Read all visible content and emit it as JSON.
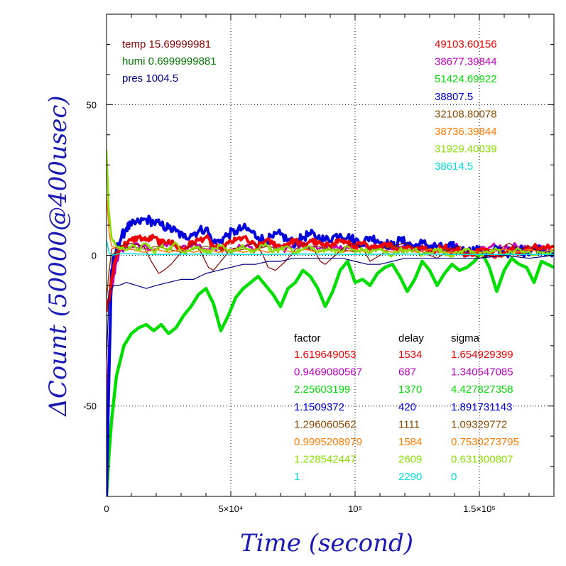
{
  "chart_data": {
    "type": "line",
    "xlabel": "Time (second)",
    "ylabel": "ΔCount (50000@400usec)",
    "xlim": [
      0,
      180000
    ],
    "ylim": [
      -80,
      80
    ],
    "x_ticks": [
      {
        "value": 0,
        "label": "0"
      },
      {
        "value": 50000,
        "label": "5×10⁴"
      },
      {
        "value": 100000,
        "label": "10⁵"
      },
      {
        "value": 150000,
        "label": "1.5×10⁵"
      }
    ],
    "y_ticks": [
      {
        "value": -50,
        "label": "-50"
      },
      {
        "value": 0,
        "label": "0"
      },
      {
        "value": 50,
        "label": "50"
      }
    ],
    "grid": true,
    "env": [
      {
        "text": "temp 15.69999981",
        "color": "#8b0000"
      },
      {
        "text": "humi 0.6999999881",
        "color": "#007a00"
      },
      {
        "text": "pres 1004.5",
        "color": "#00008b"
      }
    ],
    "baselines": [
      "49103.60156",
      "38677.39844",
      "51424.69922",
      "38807.5",
      "32108.80078",
      "38736.39844",
      "31929.40039",
      "38614.5"
    ],
    "table_headers": {
      "factor": "factor",
      "delay": "delay",
      "sigma": "sigma"
    },
    "table": [
      {
        "factor": "1.619649053",
        "delay": "1534",
        "sigma": "1.654929399"
      },
      {
        "factor": "0.9469080567",
        "delay": "687",
        "sigma": "1.340547085"
      },
      {
        "factor": "2.25603199",
        "delay": "1370",
        "sigma": "4.427827358"
      },
      {
        "factor": "1.1509372",
        "delay": "420",
        "sigma": "1.891731143"
      },
      {
        "factor": "1.296060562",
        "delay": "1111",
        "sigma": "1.09329772"
      },
      {
        "factor": "0.9995208979",
        "delay": "1584",
        "sigma": "0.7530273795"
      },
      {
        "factor": "1.228542447",
        "delay": "2609",
        "sigma": "0.631300807"
      },
      {
        "factor": "1",
        "delay": "2290",
        "sigma": "0"
      }
    ],
    "series": [
      {
        "color": "#00dd00",
        "width": 4.5,
        "x": [
          0,
          1000,
          2000,
          4000,
          7000,
          10000,
          13000,
          16000,
          19000,
          22000,
          25000,
          28000,
          31000,
          34000,
          37000,
          40000,
          43000,
          46000,
          49000,
          52000,
          55000,
          58000,
          61000,
          64000,
          67000,
          70000,
          73000,
          76000,
          79000,
          82000,
          85000,
          88000,
          91000,
          94000,
          97000,
          100000,
          103000,
          106000,
          109000,
          112000,
          115000,
          118000,
          121000,
          124000,
          127000,
          130000,
          133000,
          136000,
          139000,
          142000,
          145000,
          148000,
          151000,
          154000,
          157000,
          160000,
          163000,
          166000,
          169000,
          172000,
          175000,
          180000
        ],
        "y": [
          -80,
          -66,
          -55,
          -40,
          -30,
          -26,
          -24,
          -23,
          -25,
          -23,
          -26,
          -24,
          -20,
          -17,
          -13,
          -11,
          -16,
          -25,
          -20,
          -14,
          -11,
          -9,
          -7,
          -10,
          -13,
          -17,
          -11,
          -9,
          -5,
          -7,
          -11,
          -17,
          -12,
          -5,
          -2,
          -9,
          -8,
          -10,
          -6,
          -4,
          -3,
          -7,
          -12,
          -8,
          -2,
          -5,
          -10,
          -6,
          -3,
          -5,
          -4,
          -2,
          1,
          -4,
          -12,
          -5,
          -1,
          -3,
          -4,
          -9,
          -2,
          -4
        ]
      },
      {
        "color": "#c000c0",
        "width": 3,
        "x": [
          0,
          1000,
          2000,
          4000,
          6000,
          10000,
          15000,
          20000,
          25000,
          30000,
          35000,
          40000,
          45000,
          50000,
          55000,
          60000,
          65000,
          70000,
          75000,
          80000,
          85000,
          90000,
          95000,
          100000,
          105000,
          110000,
          115000,
          120000,
          125000,
          130000,
          135000,
          140000,
          145000,
          150000,
          155000,
          160000,
          165000,
          170000,
          175000,
          180000
        ],
        "y": [
          -60,
          -30,
          -12,
          -2,
          2,
          3,
          3,
          2,
          4,
          2,
          4,
          2,
          3,
          2,
          3,
          2,
          4,
          2,
          3,
          3,
          2,
          3,
          2,
          3,
          2,
          3,
          2,
          3,
          2,
          3,
          2,
          3,
          2,
          2,
          3,
          2,
          3,
          2,
          3,
          2
        ],
        "jitter": 1.2
      },
      {
        "color": "#0000dd",
        "width": 4,
        "x": [
          0,
          1000,
          2000,
          4000,
          6000,
          8000,
          10000,
          13000,
          16000,
          19000,
          22000,
          25000,
          28000,
          31000,
          34000,
          37000,
          40000,
          43000,
          46000,
          49000,
          52000,
          55000,
          58000,
          61000,
          64000,
          67000,
          70000,
          73000,
          76000,
          79000,
          82000,
          85000,
          88000,
          91000,
          94000,
          97000,
          100000,
          103000,
          106000,
          109000,
          112000,
          115000,
          118000,
          121000,
          124000,
          127000,
          130000,
          133000,
          136000,
          139000,
          142000,
          145000,
          148000,
          151000,
          154000,
          157000,
          160000,
          163000,
          166000,
          169000,
          172000,
          175000,
          180000
        ],
        "y": [
          -80,
          -40,
          -5,
          2,
          6,
          9,
          10,
          11,
          12,
          11,
          10,
          9,
          8,
          6,
          7,
          8,
          9,
          4,
          5,
          7,
          8,
          9,
          8,
          6,
          5,
          6,
          7,
          5,
          4,
          6,
          7,
          6,
          5,
          6,
          7,
          6,
          5,
          4,
          6,
          5,
          4,
          3,
          5,
          4,
          3,
          4,
          3,
          3,
          2,
          3,
          2,
          1,
          2,
          1,
          0,
          2,
          1,
          1,
          2,
          1,
          2,
          2,
          1
        ],
        "jitter": 1.6
      },
      {
        "color": "#ee0000",
        "width": 4,
        "x": [
          0,
          1000,
          2000,
          4000,
          6000,
          8000,
          10000,
          13000,
          16000,
          19000,
          22000,
          25000,
          28000,
          31000,
          34000,
          37000,
          40000,
          43000,
          46000,
          49000,
          52000,
          55000,
          58000,
          61000,
          64000,
          67000,
          70000,
          73000,
          76000,
          79000,
          82000,
          85000,
          88000,
          91000,
          94000,
          97000,
          100000,
          103000,
          106000,
          109000,
          112000,
          115000,
          118000,
          121000,
          124000,
          127000,
          130000,
          133000,
          136000,
          139000,
          142000,
          145000,
          148000,
          151000,
          154000,
          157000,
          160000,
          163000,
          166000,
          169000,
          172000,
          175000,
          180000
        ],
        "y": [
          -18,
          -15,
          -8,
          0,
          3,
          4,
          5,
          6,
          5,
          6,
          4,
          5,
          3,
          2,
          4,
          5,
          6,
          3,
          2,
          4,
          5,
          6,
          4,
          3,
          5,
          4,
          3,
          4,
          5,
          3,
          5,
          4,
          3,
          4,
          5,
          4,
          3,
          4,
          2,
          3,
          4,
          3,
          2,
          3,
          2,
          3,
          1,
          2,
          3,
          1,
          2,
          0,
          1,
          2,
          1,
          0,
          1,
          2,
          1,
          2,
          3,
          2,
          3
        ],
        "jitter": 1.0
      },
      {
        "color": "#8b0000",
        "width": 1.2,
        "x": [
          0,
          1000,
          2000,
          5000,
          10000,
          15000,
          18000,
          21000,
          23000,
          26000,
          30000,
          35000,
          38000,
          41000,
          43000,
          46000,
          50000,
          55000,
          60000,
          63000,
          65000,
          68000,
          72000,
          76000,
          80000,
          84000,
          86000,
          88000,
          92000,
          96000,
          100000,
          104000,
          106000,
          110000,
          115000,
          120000,
          125000,
          130000,
          133000,
          138000,
          142000,
          146000,
          150000,
          154000,
          158000,
          162000,
          166000,
          170000,
          175000,
          180000
        ],
        "y": [
          -14,
          -6,
          2,
          3,
          4,
          3,
          -2,
          -6,
          -5,
          -3,
          1,
          4,
          1,
          -4,
          -5,
          -2,
          2,
          3,
          4,
          0,
          -4,
          -5,
          -2,
          2,
          4,
          1,
          -2,
          -3,
          0,
          3,
          4,
          1,
          -2,
          0,
          3,
          4,
          2,
          0,
          -1,
          2,
          3,
          1,
          -1,
          0,
          2,
          4,
          2,
          3,
          1,
          2
        ]
      },
      {
        "color": "#8a4a00",
        "width": 1.2,
        "x": [
          0,
          1000,
          2000,
          5000,
          10000,
          15000,
          20000,
          25000,
          30000,
          35000,
          40000,
          45000,
          50000,
          55000,
          60000,
          65000,
          70000,
          75000,
          80000,
          85000,
          90000,
          95000,
          100000,
          105000,
          110000,
          115000,
          120000,
          125000,
          130000,
          135000,
          140000,
          145000,
          150000,
          155000,
          160000,
          165000,
          170000,
          175000,
          180000
        ],
        "y": [
          -15,
          -5,
          0,
          2,
          3,
          2,
          3,
          2,
          1,
          2,
          3,
          2,
          1,
          2,
          2,
          3,
          2,
          1,
          2,
          3,
          2,
          2,
          1,
          2,
          2,
          3,
          2,
          1,
          2,
          2,
          1,
          2,
          1,
          2,
          2,
          1,
          2,
          1,
          2
        ]
      },
      {
        "color": "#ff7a00",
        "width": 1.5,
        "x": [
          0,
          1000,
          2000,
          5000,
          10000,
          15000,
          20000,
          25000,
          30000,
          35000,
          40000,
          45000,
          50000,
          55000,
          60000,
          65000,
          70000,
          75000,
          80000,
          85000,
          90000,
          95000,
          100000,
          105000,
          110000,
          115000,
          120000,
          125000,
          130000,
          135000,
          140000,
          145000,
          150000,
          155000,
          160000,
          165000,
          170000,
          175000,
          180000
        ],
        "y": [
          20,
          8,
          3,
          2,
          2,
          1,
          2,
          1,
          2,
          1,
          2,
          1,
          2,
          1,
          2,
          1,
          2,
          1,
          2,
          1,
          2,
          1,
          2,
          1,
          2,
          1,
          2,
          1,
          2,
          1,
          1,
          2,
          1,
          1,
          2,
          1,
          2,
          1,
          2
        ]
      },
      {
        "color": "#88e000",
        "width": 2.5,
        "x": [
          0,
          1000,
          2000,
          4000,
          7000,
          10000,
          13000,
          16000,
          19000,
          22000,
          25000,
          28000,
          31000,
          34000,
          37000,
          40000,
          43000,
          46000,
          49000,
          52000,
          55000,
          58000,
          61000,
          64000,
          67000,
          70000,
          73000,
          76000,
          79000,
          82000,
          85000,
          88000,
          91000,
          94000,
          97000,
          100000,
          103000,
          106000,
          109000,
          112000,
          115000,
          118000,
          121000,
          124000,
          127000,
          130000,
          133000,
          136000,
          139000,
          142000,
          145000,
          148000,
          151000,
          154000,
          157000,
          160000,
          163000,
          166000,
          169000,
          172000,
          175000,
          180000
        ],
        "y": [
          35,
          14,
          6,
          3,
          2,
          3,
          2,
          4,
          1,
          3,
          2,
          4,
          1,
          2,
          3,
          1,
          2,
          3,
          1,
          2,
          3,
          1,
          2,
          4,
          1,
          2,
          3,
          1,
          2,
          3,
          1,
          2,
          2,
          1,
          3,
          1,
          2,
          1,
          2,
          1,
          0,
          2,
          1,
          2,
          0,
          1,
          2,
          1,
          0,
          1,
          2,
          1,
          0,
          1,
          2,
          0,
          1,
          2,
          1,
          0,
          1,
          1
        ],
        "jitter": 0.8
      },
      {
        "color": "#00dddd",
        "width": 1.5,
        "x": [
          0,
          1000,
          2000,
          5000,
          10000,
          20000,
          40000,
          60000,
          80000,
          100000,
          120000,
          140000,
          160000,
          180000
        ],
        "y": [
          5,
          1,
          0,
          0.5,
          0.5,
          0.3,
          0.4,
          0.3,
          0.4,
          0.3,
          0.4,
          0.3,
          0.3,
          0.3
        ]
      },
      {
        "color": "#000080",
        "width": 1.2,
        "x": [
          0,
          1000,
          2000,
          3000,
          5000,
          8000,
          12000,
          16000,
          20000,
          25000,
          30000,
          35000,
          40000,
          45000,
          50000,
          55000,
          60000,
          65000,
          70000,
          75000,
          80000,
          85000,
          90000,
          95000,
          100000,
          105000,
          110000,
          115000,
          120000,
          125000,
          130000,
          140000,
          150000,
          160000,
          170000,
          180000
        ],
        "y": [
          -35,
          -12,
          -11,
          -10,
          -10,
          -9,
          -10,
          -11,
          -10,
          -9,
          -8,
          -8,
          -6,
          -5,
          -4,
          -3,
          -3,
          -2,
          -2,
          -1,
          -1,
          -1,
          -1,
          -1,
          -2,
          -3,
          -3,
          -2,
          -1,
          -1,
          -1,
          -1,
          -1,
          0,
          -1,
          0
        ]
      }
    ]
  }
}
